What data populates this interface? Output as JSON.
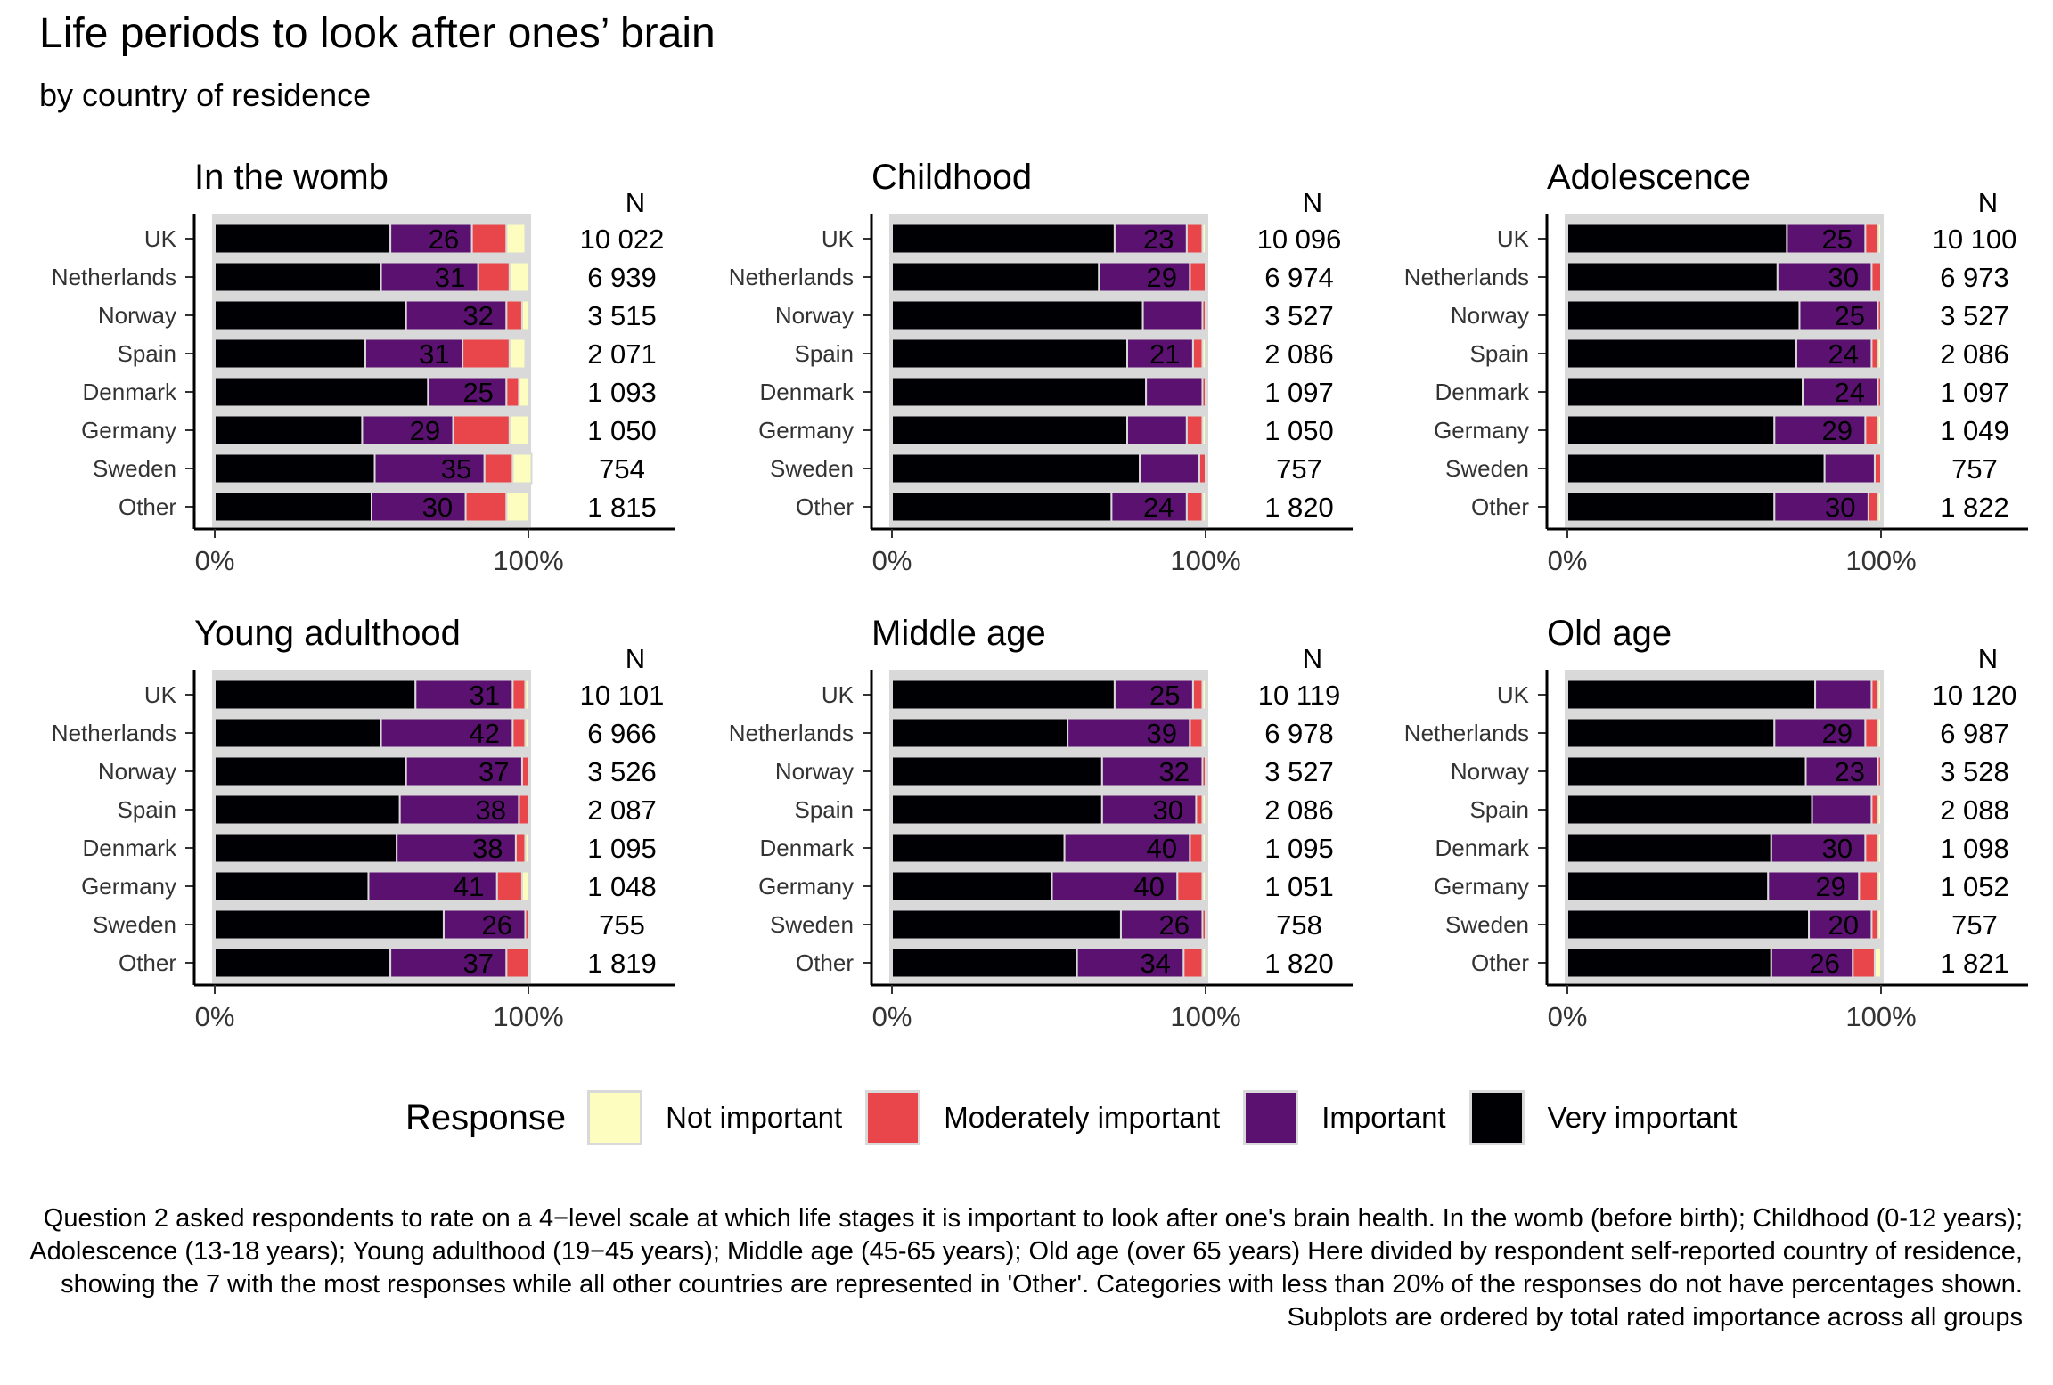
{
  "title": "Life periods to look after ones’ brain",
  "subtitle": "by country of residence",
  "caption": "Question 2 asked respondents to rate on a 4−level scale at which life stages it is important to look after one's brain health. In the womb (before birth); Childhood (0-12 years); Adolescence (13-18 years); Young adulthood (19−45 years); Middle age (45-65 years); Old age (over 65 years) Here divided by respondent self-reported country of residence, showing the 7 with the most responses while all other countries are represented in 'Other'. Categories with less than 20% of the responses do not have percentages shown. Subplots are ordered by total rated importance across all groups",
  "legend": {
    "title": "Response",
    "items": [
      {
        "label": "Not important",
        "color": "#FCFDBF"
      },
      {
        "label": "Moderately important",
        "color": "#E8464B"
      },
      {
        "label": "Important",
        "color": "#5A1170"
      },
      {
        "label": "Very important",
        "color": "#000004"
      }
    ]
  },
  "chart_data": {
    "type": "bar",
    "orientation": "horizontal",
    "stacked": true,
    "normalized": true,
    "xlim": [
      0,
      100
    ],
    "x_ticks": [
      "0%",
      "100%"
    ],
    "n_header": "N",
    "categories": [
      "UK",
      "Netherlands",
      "Norway",
      "Spain",
      "Denmark",
      "Germany",
      "Sweden",
      "Other"
    ],
    "series_order": [
      "Very important",
      "Important",
      "Moderately important",
      "Not important"
    ],
    "colors": {
      "Very important": "#000004",
      "Important": "#5A1170",
      "Moderately important": "#E8464B",
      "Not important": "#FCFDBF"
    },
    "panels": [
      {
        "title": "In the womb",
        "n": [
          "10 022",
          "6 939",
          "3 515",
          "2 071",
          "1 093",
          "1 050",
          "754",
          "1 815"
        ],
        "values": [
          [
            56,
            26,
            11,
            6
          ],
          [
            53,
            31,
            10,
            6
          ],
          [
            61,
            32,
            5,
            2
          ],
          [
            48,
            31,
            15,
            5
          ],
          [
            68,
            25,
            4,
            3
          ],
          [
            47,
            29,
            18,
            6
          ],
          [
            51,
            35,
            9,
            6
          ],
          [
            50,
            30,
            13,
            7
          ]
        ],
        "labels": [
          [
            "",
            "26",
            "",
            ""
          ],
          [
            "",
            "31",
            "",
            ""
          ],
          [
            "",
            "32",
            "",
            ""
          ],
          [
            "",
            "31",
            "",
            ""
          ],
          [
            "",
            "25",
            "",
            ""
          ],
          [
            "",
            "29",
            "",
            ""
          ],
          [
            "",
            "35",
            "",
            ""
          ],
          [
            "",
            "30",
            "",
            ""
          ]
        ]
      },
      {
        "title": "Childhood",
        "n": [
          "10 096",
          "6 974",
          "3 527",
          "2 086",
          "1 097",
          "1 050",
          "757",
          "1 820"
        ],
        "values": [
          [
            71,
            23,
            5,
            1
          ],
          [
            66,
            29,
            5,
            0
          ],
          [
            80,
            19,
            1,
            0
          ],
          [
            75,
            21,
            3,
            1
          ],
          [
            81,
            18,
            1,
            0
          ],
          [
            75,
            19,
            5,
            1
          ],
          [
            79,
            19,
            2,
            0
          ],
          [
            70,
            24,
            5,
            1
          ]
        ],
        "labels": [
          [
            "",
            "23",
            "",
            ""
          ],
          [
            "",
            "29",
            "",
            ""
          ],
          [
            "",
            "",
            "",
            ""
          ],
          [
            "",
            "21",
            "",
            ""
          ],
          [
            "",
            "",
            "",
            ""
          ],
          [
            "",
            "",
            "",
            ""
          ],
          [
            "",
            "",
            "",
            ""
          ],
          [
            "",
            "24",
            "",
            ""
          ]
        ]
      },
      {
        "title": "Adolescence",
        "n": [
          "10 100",
          "6 973",
          "3 527",
          "2 086",
          "1 097",
          "1 049",
          "757",
          "1 822"
        ],
        "values": [
          [
            70,
            25,
            4,
            1
          ],
          [
            67,
            30,
            3,
            0
          ],
          [
            74,
            25,
            1,
            0
          ],
          [
            73,
            24,
            2,
            1
          ],
          [
            75,
            24,
            1,
            0
          ],
          [
            66,
            29,
            4,
            1
          ],
          [
            82,
            16,
            2,
            0
          ],
          [
            66,
            30,
            3,
            1
          ]
        ],
        "labels": [
          [
            "",
            "25",
            "",
            ""
          ],
          [
            "",
            "30",
            "",
            ""
          ],
          [
            "",
            "25",
            "",
            ""
          ],
          [
            "",
            "24",
            "",
            ""
          ],
          [
            "",
            "24",
            "",
            ""
          ],
          [
            "",
            "29",
            "",
            ""
          ],
          [
            "",
            "",
            "",
            ""
          ],
          [
            "",
            "30",
            "",
            ""
          ]
        ]
      },
      {
        "title": "Young adulthood",
        "n": [
          "10 101",
          "6 966",
          "3 526",
          "2 087",
          "1 095",
          "1 048",
          "755",
          "1 819"
        ],
        "values": [
          [
            64,
            31,
            4,
            1
          ],
          [
            53,
            42,
            4,
            1
          ],
          [
            61,
            37,
            2,
            0
          ],
          [
            59,
            38,
            3,
            0
          ],
          [
            58,
            38,
            3,
            1
          ],
          [
            49,
            41,
            8,
            2
          ],
          [
            73,
            26,
            1,
            0
          ],
          [
            56,
            37,
            7,
            0
          ]
        ],
        "labels": [
          [
            "",
            "31",
            "",
            ""
          ],
          [
            "",
            "42",
            "",
            ""
          ],
          [
            "",
            "37",
            "",
            ""
          ],
          [
            "",
            "38",
            "",
            ""
          ],
          [
            "",
            "38",
            "",
            ""
          ],
          [
            "",
            "41",
            "",
            ""
          ],
          [
            "",
            "26",
            "",
            ""
          ],
          [
            "",
            "37",
            "",
            ""
          ]
        ]
      },
      {
        "title": "Middle age",
        "n": [
          "10 119",
          "6 978",
          "3 527",
          "2 086",
          "1 095",
          "1 051",
          "758",
          "1 820"
        ],
        "values": [
          [
            71,
            25,
            3,
            1
          ],
          [
            56,
            39,
            4,
            1
          ],
          [
            67,
            32,
            1,
            0
          ],
          [
            67,
            30,
            2,
            1
          ],
          [
            55,
            40,
            4,
            1
          ],
          [
            51,
            40,
            8,
            1
          ],
          [
            73,
            26,
            1,
            0
          ],
          [
            59,
            34,
            6,
            1
          ]
        ],
        "labels": [
          [
            "",
            "25",
            "",
            ""
          ],
          [
            "",
            "39",
            "",
            ""
          ],
          [
            "",
            "32",
            "",
            ""
          ],
          [
            "",
            "30",
            "",
            ""
          ],
          [
            "",
            "40",
            "",
            ""
          ],
          [
            "",
            "40",
            "",
            ""
          ],
          [
            "",
            "26",
            "",
            ""
          ],
          [
            "",
            "34",
            "",
            ""
          ]
        ]
      },
      {
        "title": "Old age",
        "n": [
          "10 120",
          "6 987",
          "3 528",
          "2 088",
          "1 098",
          "1 052",
          "757",
          "1 821"
        ],
        "values": [
          [
            79,
            18,
            2,
            1
          ],
          [
            66,
            29,
            4,
            1
          ],
          [
            76,
            23,
            1,
            0
          ],
          [
            78,
            19,
            2,
            1
          ],
          [
            65,
            30,
            4,
            1
          ],
          [
            64,
            29,
            6,
            1
          ],
          [
            77,
            20,
            2,
            1
          ],
          [
            65,
            26,
            7,
            2
          ]
        ],
        "labels": [
          [
            "",
            "",
            "",
            ""
          ],
          [
            "",
            "29",
            "",
            ""
          ],
          [
            "",
            "23",
            "",
            ""
          ],
          [
            "",
            "",
            "",
            ""
          ],
          [
            "",
            "30",
            "",
            ""
          ],
          [
            "",
            "29",
            "",
            ""
          ],
          [
            "",
            "20",
            "",
            ""
          ],
          [
            "",
            "26",
            "",
            ""
          ]
        ]
      }
    ]
  }
}
